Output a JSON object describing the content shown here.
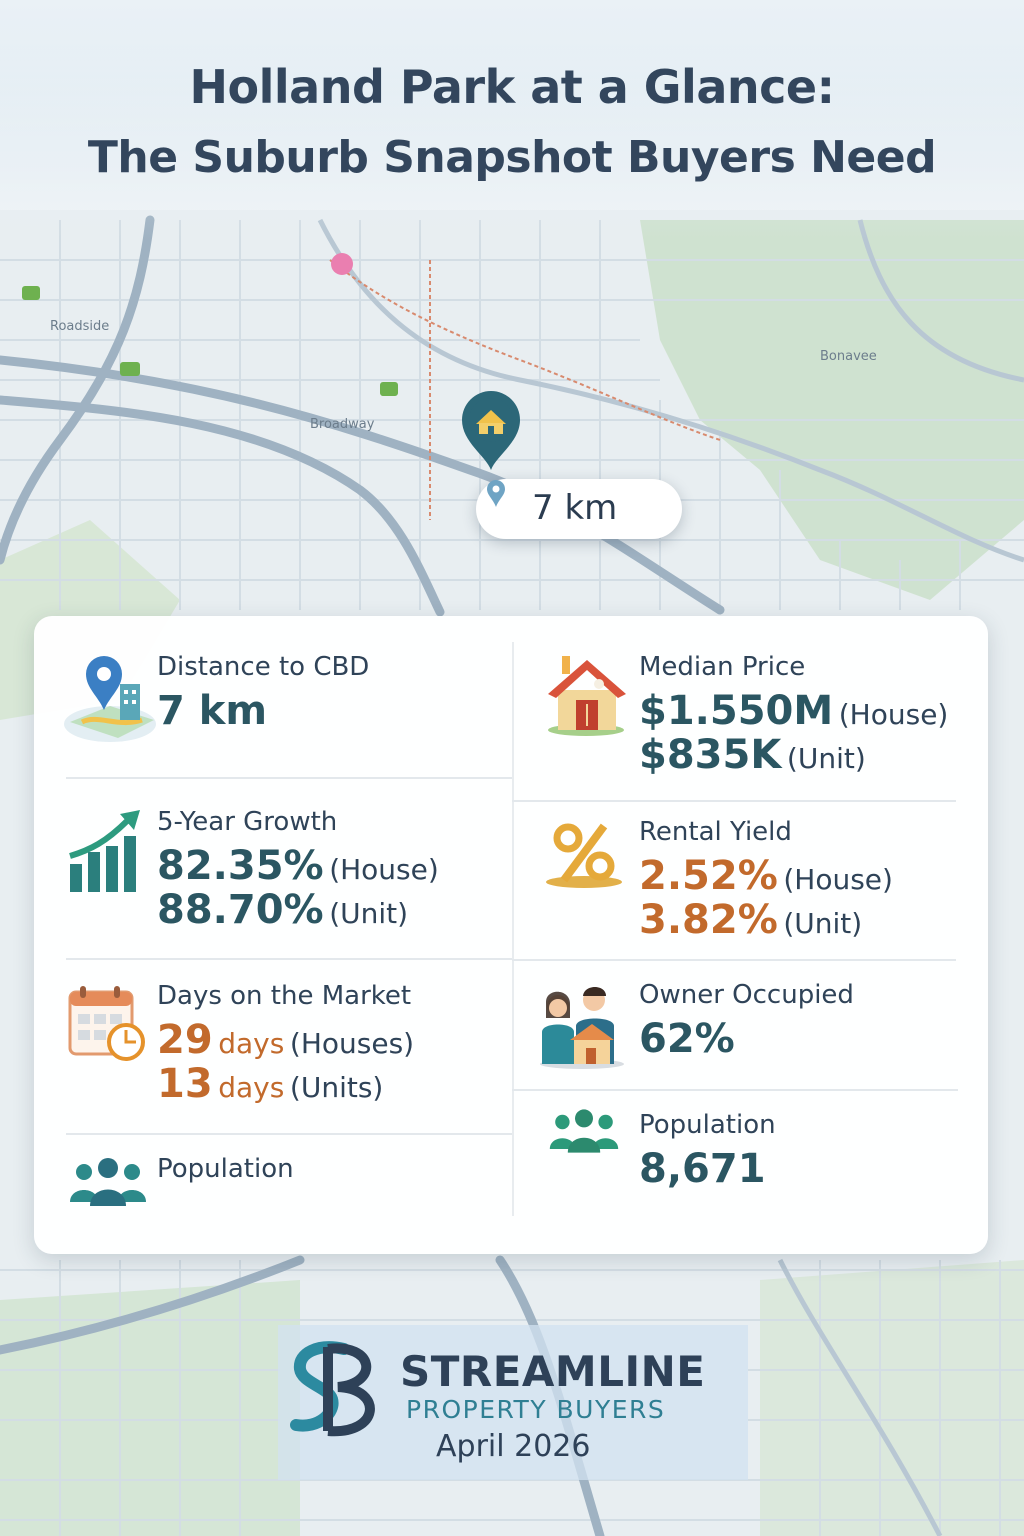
{
  "title": {
    "line1": "Holland Park at a Glance:",
    "line2": "The Suburb Snapshot Buyers Need"
  },
  "map": {
    "distance_pill": "7 km"
  },
  "stats": {
    "distance": {
      "label": "Distance to CBD",
      "value": "7 km"
    },
    "median_price": {
      "label": "Median Price",
      "house_value": "$1.550M",
      "house_unit": "(House)",
      "unit_value": "$835K",
      "unit_unit": "(Unit)"
    },
    "growth": {
      "label": "5-Year Growth",
      "house_value": "82.35%",
      "house_unit": "(House)",
      "unit_value": "88.70%",
      "unit_unit": "(Unit)"
    },
    "rental_yield": {
      "label": "Rental Yield",
      "house_value": "2.52%",
      "house_unit": "(House)",
      "unit_value": "3.82%",
      "unit_unit": "(Unit)"
    },
    "days_on_market": {
      "label": "Days on the Market",
      "houses_num": "29",
      "houses_word": "days",
      "houses_unit": "(Houses)",
      "units_num": "13",
      "units_word": "days",
      "units_unit": "(Units)"
    },
    "owner_occupied": {
      "label": "Owner Occupied",
      "value": "62%"
    },
    "population_left": {
      "label": "Population"
    },
    "population_right": {
      "label": "Population",
      "value": "8,671"
    }
  },
  "brand": {
    "name": "STREAMLINE",
    "tagline": "PROPERTY BUYERS",
    "date": "April 2026"
  },
  "colors": {
    "teal": "#2b5662",
    "orange": "#c26a2c",
    "title": "#33465d"
  },
  "icons": [
    "map-pin-city-icon",
    "house-icon",
    "growth-chart-icon",
    "percent-icon",
    "calendar-clock-icon",
    "family-home-icon",
    "people-group-icon"
  ]
}
